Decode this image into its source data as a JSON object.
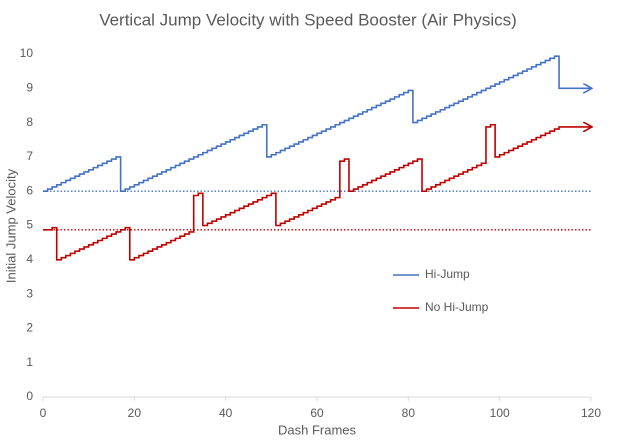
{
  "chart_data": {
    "type": "line",
    "step": "post",
    "title": "Vertical Jump Velocity with Speed Booster (Air Physics)",
    "x_label": "Dash Frames",
    "y_label": "Initial Jump Velocity",
    "xlim": [
      0,
      120
    ],
    "xticks": [
      0,
      20,
      40,
      60,
      80,
      100,
      120
    ],
    "ylim": [
      0,
      10
    ],
    "yticks": [
      0,
      1,
      2,
      3,
      4,
      5,
      6,
      7,
      8,
      9,
      10
    ],
    "grid": false,
    "legend": "right",
    "x": [
      0,
      1,
      2,
      3,
      4,
      5,
      6,
      7,
      8,
      9,
      10,
      11,
      12,
      13,
      14,
      15,
      16,
      17,
      18,
      19,
      20,
      21,
      22,
      23,
      24,
      25,
      26,
      27,
      28,
      29,
      30,
      31,
      32,
      33,
      34,
      35,
      36,
      37,
      38,
      39,
      40,
      41,
      42,
      43,
      44,
      45,
      46,
      47,
      48,
      49,
      50,
      51,
      52,
      53,
      54,
      55,
      56,
      57,
      58,
      59,
      60,
      61,
      62,
      63,
      64,
      65,
      66,
      67,
      68,
      69,
      70,
      71,
      72,
      73,
      74,
      75,
      76,
      77,
      78,
      79,
      80,
      81,
      82,
      83,
      84,
      85,
      86,
      87,
      88,
      89,
      90,
      91,
      92,
      93,
      94,
      95,
      96,
      97,
      98,
      99,
      100,
      101,
      102,
      103,
      104,
      105,
      106,
      107,
      108,
      109,
      110,
      111,
      112,
      113,
      120
    ],
    "series": [
      {
        "name": "Hi-Jump",
        "color": "#4472c4",
        "values": [
          6,
          6.0625,
          6.125,
          6.1875,
          6.25,
          6.3125,
          6.375,
          6.4375,
          6.5,
          6.5625,
          6.625,
          6.6875,
          6.75,
          6.8125,
          6.875,
          6.9375,
          7,
          6,
          6.0625,
          6.125,
          6.1875,
          6.25,
          6.3125,
          6.375,
          6.4375,
          6.5,
          6.5625,
          6.625,
          6.6875,
          6.75,
          6.8125,
          6.875,
          6.9375,
          7,
          7.0625,
          7.125,
          7.1875,
          7.25,
          7.3125,
          7.375,
          7.4375,
          7.5,
          7.5625,
          7.625,
          7.6875,
          7.75,
          7.8125,
          7.875,
          7.9375,
          7,
          7.0625,
          7.125,
          7.1875,
          7.25,
          7.3125,
          7.375,
          7.4375,
          7.5,
          7.5625,
          7.625,
          7.6875,
          7.75,
          7.8125,
          7.875,
          7.9375,
          8,
          8.0625,
          8.125,
          8.1875,
          8.25,
          8.3125,
          8.375,
          8.4375,
          8.5,
          8.5625,
          8.625,
          8.6875,
          8.75,
          8.8125,
          8.875,
          8.9375,
          8,
          8.0625,
          8.125,
          8.1875,
          8.25,
          8.3125,
          8.375,
          8.4375,
          8.5,
          8.5625,
          8.625,
          8.6875,
          8.75,
          8.8125,
          8.875,
          8.9375,
          9,
          9.0625,
          9.125,
          9.1875,
          9.25,
          9.3125,
          9.375,
          9.4375,
          9.5,
          9.5625,
          9.625,
          9.6875,
          9.75,
          9.8125,
          9.875,
          9.9375,
          9,
          9
        ]
      },
      {
        "name": "No Hi-Jump",
        "color": "#c00000",
        "values": [
          4.875,
          4.875,
          4.9375,
          4,
          4.0625,
          4.125,
          4.1875,
          4.25,
          4.3125,
          4.375,
          4.4375,
          4.5,
          4.5625,
          4.625,
          4.6875,
          4.75,
          4.8125,
          4.875,
          4.9375,
          4,
          4.0625,
          4.125,
          4.1875,
          4.25,
          4.3125,
          4.375,
          4.4375,
          4.5,
          4.5625,
          4.625,
          4.6875,
          4.75,
          4.8125,
          5.875,
          5.9375,
          5,
          5.0625,
          5.125,
          5.1875,
          5.25,
          5.3125,
          5.375,
          5.4375,
          5.5,
          5.5625,
          5.625,
          5.6875,
          5.75,
          5.8125,
          5.875,
          5.9375,
          5,
          5.0625,
          5.125,
          5.1875,
          5.25,
          5.3125,
          5.375,
          5.4375,
          5.5,
          5.5625,
          5.625,
          5.6875,
          5.75,
          5.8125,
          6.875,
          6.9375,
          6,
          6.0625,
          6.125,
          6.1875,
          6.25,
          6.3125,
          6.375,
          6.4375,
          6.5,
          6.5625,
          6.625,
          6.6875,
          6.75,
          6.8125,
          6.875,
          6.9375,
          6,
          6.0625,
          6.125,
          6.1875,
          6.25,
          6.3125,
          6.375,
          6.4375,
          6.5,
          6.5625,
          6.625,
          6.6875,
          6.75,
          6.8125,
          7.875,
          7.9375,
          7,
          7.0625,
          7.125,
          7.1875,
          7.25,
          7.3125,
          7.375,
          7.4375,
          7.5,
          7.5625,
          7.625,
          7.6875,
          7.75,
          7.8125,
          7.875,
          7.875
        ]
      }
    ],
    "reference_lines": [
      {
        "value": 6,
        "color": "#4472c4"
      },
      {
        "value": 4.875,
        "color": "#c00000"
      }
    ]
  }
}
